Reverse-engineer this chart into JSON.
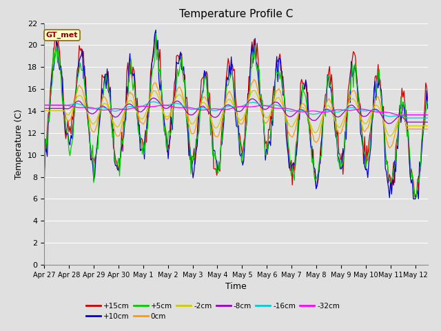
{
  "title": "Temperature Profile C",
  "xlabel": "Time",
  "ylabel": "Temperature (C)",
  "ylim": [
    0,
    22
  ],
  "yticks": [
    0,
    2,
    4,
    6,
    8,
    10,
    12,
    14,
    16,
    18,
    20,
    22
  ],
  "x_labels": [
    "Apr 27",
    "Apr 28",
    "Apr 29",
    "Apr 30",
    "May 1",
    "May 2",
    "May 3",
    "May 4",
    "May 5",
    "May 6",
    "May 7",
    "May 8",
    "May 9",
    "May 10",
    "May 11",
    "May 12"
  ],
  "legend_label": "GT_met",
  "series_labels": [
    "+15cm",
    "+10cm",
    "+5cm",
    "0cm",
    "-2cm",
    "-8cm",
    "-16cm",
    "-32cm"
  ],
  "series_colors": [
    "#cc0000",
    "#0000cc",
    "#00cc00",
    "#ff9900",
    "#cccc00",
    "#9900cc",
    "#00cccc",
    "#ff00ff"
  ],
  "bg_color": "#e0e0e0",
  "title_fontsize": 11,
  "label_fontsize": 9,
  "tick_fontsize": 8
}
